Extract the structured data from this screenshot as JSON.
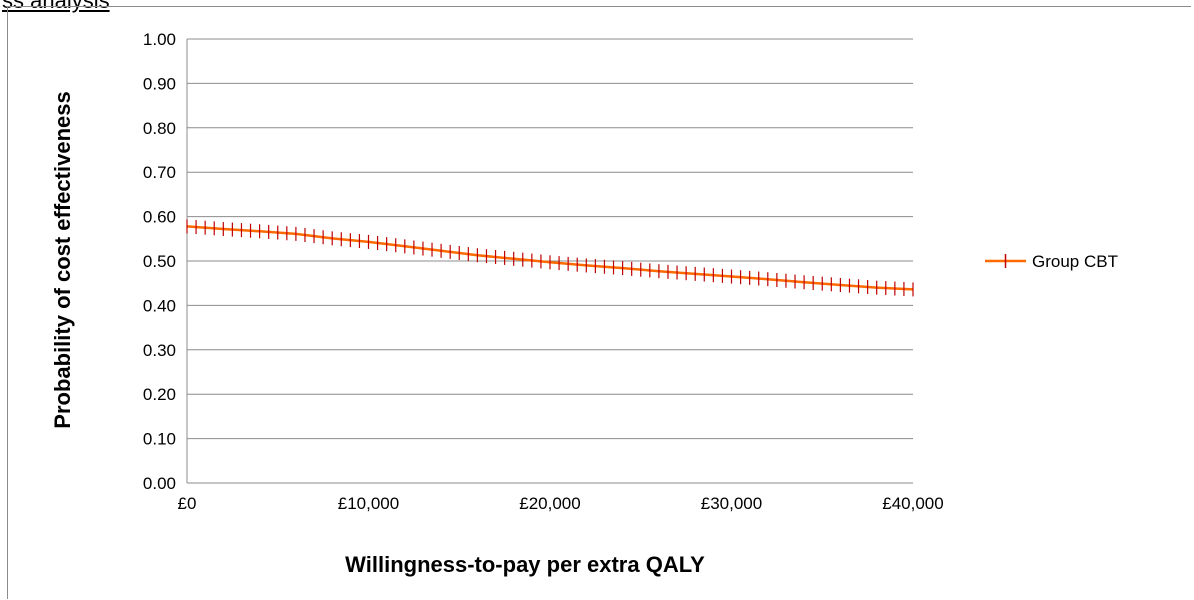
{
  "header_fragment": "ss analysis",
  "chart_data": {
    "type": "line",
    "title": "",
    "xlabel": "Willingness-to-pay per extra QALY",
    "ylabel": "Probability of cost effectiveness",
    "xlim": [
      0,
      40000
    ],
    "ylim": [
      0,
      1
    ],
    "x_ticks": [
      0,
      10000,
      20000,
      30000,
      40000
    ],
    "x_tick_labels": [
      "£0",
      "£10,000",
      "£20,000",
      "£30,000",
      "£40,000"
    ],
    "y_ticks": [
      0,
      0.1,
      0.2,
      0.3,
      0.4,
      0.5,
      0.6,
      0.7,
      0.8,
      0.9,
      1.0
    ],
    "y_tick_labels": [
      "0.00",
      "0.10",
      "0.20",
      "0.30",
      "0.40",
      "0.50",
      "0.60",
      "0.70",
      "0.80",
      "0.90",
      "1.00"
    ],
    "grid": true,
    "legend_position": "right",
    "series": [
      {
        "name": "Group CBT",
        "color": "#ff6a00",
        "marker_color": "#c00000",
        "marker": "plus",
        "x": [
          0,
          2000,
          4000,
          6000,
          8000,
          10000,
          12000,
          14000,
          16000,
          18000,
          20000,
          22000,
          24000,
          26000,
          28000,
          30000,
          32000,
          34000,
          36000,
          38000,
          40000
        ],
        "y": [
          0.578,
          0.572,
          0.567,
          0.561,
          0.551,
          0.543,
          0.533,
          0.523,
          0.513,
          0.505,
          0.497,
          0.49,
          0.484,
          0.477,
          0.471,
          0.465,
          0.459,
          0.452,
          0.446,
          0.44,
          0.436
        ]
      }
    ]
  }
}
